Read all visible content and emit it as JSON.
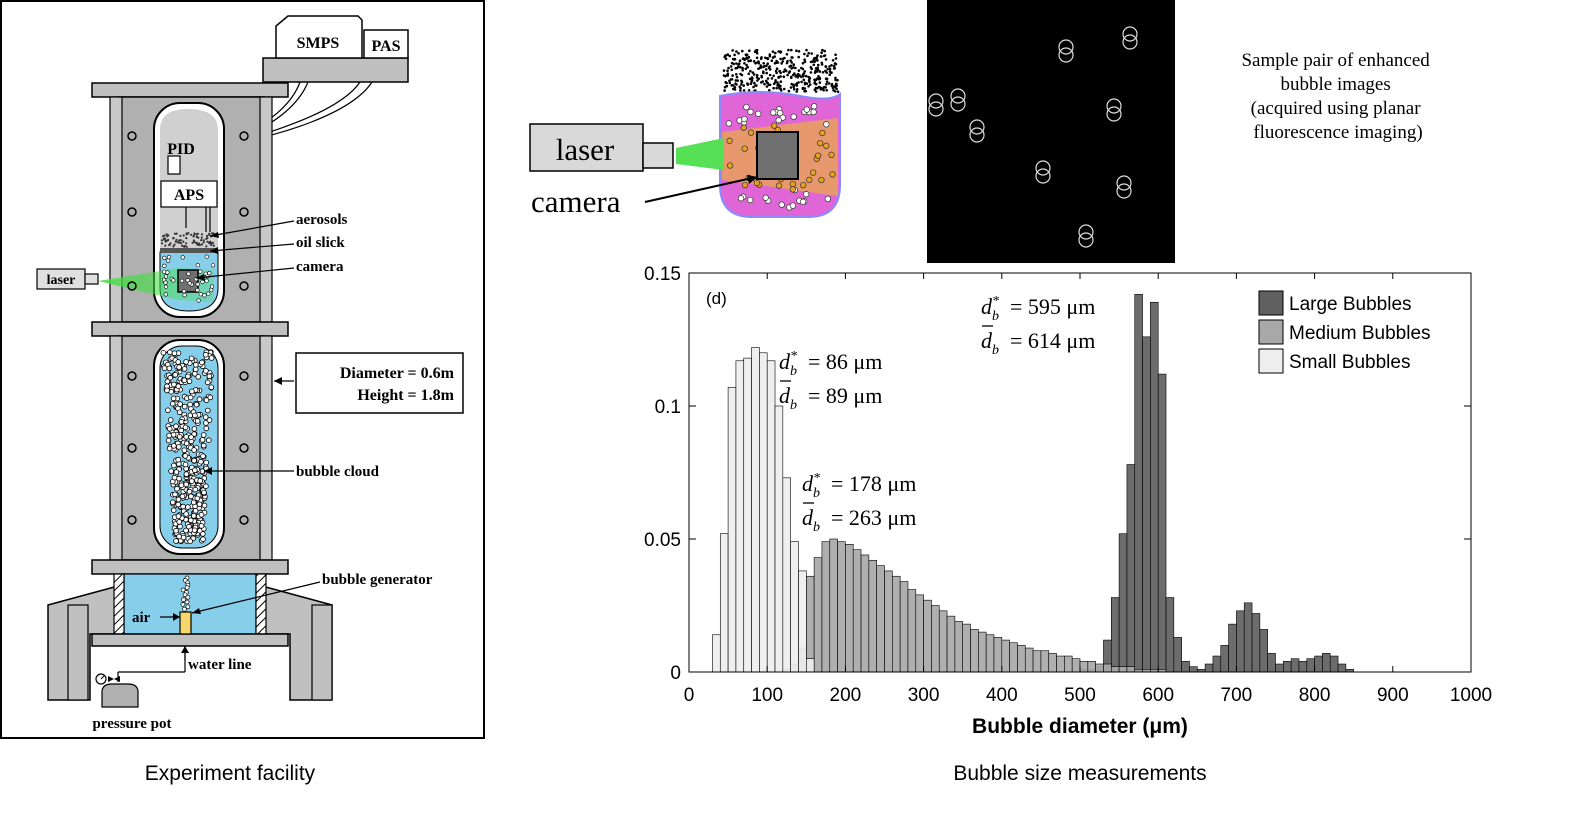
{
  "facility": {
    "caption": "Experiment facility",
    "labels": {
      "smps": "SMPS",
      "pas": "PAS",
      "pid": "PID",
      "aps": "APS",
      "aerosols": "aerosols",
      "oil_slick": "oil slick",
      "camera": "camera",
      "laser": "laser",
      "diameter": "Diameter = 0.6m",
      "height": "Height = 1.8m",
      "bubble_cloud": "bubble cloud",
      "bubble_generator": "bubble generator",
      "air": "air",
      "water_line": "water line",
      "pressure_pot": "pressure pot"
    },
    "colors": {
      "steel": "#c0c0c0",
      "water": "#87ceeb",
      "laser_beam": "#44dd44",
      "generator": "#f5d76e"
    }
  },
  "imaging": {
    "laser_label": "laser",
    "camera_label": "camera",
    "sample_caption_lines": [
      "Sample pair of enhanced",
      "bubble images",
      "(acquired using planar",
      "fluorescence imaging)"
    ],
    "colors": {
      "tank": "#e066d8",
      "fluorescence": "#e8a25a",
      "beam": "#55e055",
      "sample_bg": "#000000"
    }
  },
  "chart_caption": "Bubble size measurements",
  "chart_data": {
    "type": "bar",
    "panel_label": "(d)",
    "xlabel": "Bubble diameter (μm)",
    "xlim": [
      0,
      1000
    ],
    "ylim": [
      0,
      0.15
    ],
    "xticks": [
      0,
      100,
      200,
      300,
      400,
      500,
      600,
      700,
      800,
      900,
      1000
    ],
    "yticks": [
      0,
      0.05,
      0.1,
      0.15
    ],
    "ytick_labels": [
      "0",
      "0.05",
      "0.1",
      "0.15"
    ],
    "bin_width": 10,
    "legend_position": "top-right",
    "series": [
      {
        "name": "Large Bubbles",
        "color": "#606060",
        "bin_starts": [
          500,
          510,
          520,
          530,
          540,
          550,
          560,
          570,
          580,
          590,
          600,
          610,
          620,
          630,
          640,
          650,
          660,
          670,
          680,
          690,
          700,
          710,
          720,
          730,
          740,
          750,
          760,
          770,
          780,
          790,
          800,
          810,
          820,
          830,
          840
        ],
        "values": [
          0.001,
          0.001,
          0.002,
          0.012,
          0.028,
          0.052,
          0.078,
          0.142,
          0.126,
          0.139,
          0.112,
          0.028,
          0.013,
          0.004,
          0.002,
          0.001,
          0.003,
          0.006,
          0.01,
          0.018,
          0.023,
          0.026,
          0.022,
          0.016,
          0.007,
          0.003,
          0.004,
          0.005,
          0.004,
          0.005,
          0.006,
          0.007,
          0.006,
          0.003,
          0.001
        ]
      },
      {
        "name": "Medium Bubbles",
        "color": "#a8a8a8",
        "bin_starts": [
          120,
          130,
          140,
          150,
          160,
          170,
          180,
          190,
          200,
          210,
          220,
          230,
          240,
          250,
          260,
          270,
          280,
          290,
          300,
          310,
          320,
          330,
          340,
          350,
          360,
          370,
          380,
          390,
          400,
          410,
          420,
          430,
          440,
          450,
          460,
          470,
          480,
          490,
          500,
          510,
          520,
          530,
          540,
          550,
          560,
          570,
          580,
          590,
          600
        ],
        "values": [
          0.001,
          0.003,
          0.009,
          0.036,
          0.043,
          0.049,
          0.05,
          0.049,
          0.048,
          0.046,
          0.044,
          0.042,
          0.04,
          0.038,
          0.036,
          0.034,
          0.031,
          0.029,
          0.027,
          0.025,
          0.023,
          0.021,
          0.019,
          0.018,
          0.016,
          0.015,
          0.014,
          0.013,
          0.012,
          0.011,
          0.01,
          0.009,
          0.008,
          0.008,
          0.007,
          0.006,
          0.006,
          0.005,
          0.004,
          0.004,
          0.003,
          0.003,
          0.002,
          0.002,
          0.002,
          0.001,
          0.001,
          0.001,
          0.001
        ]
      },
      {
        "name": "Small Bubbles",
        "color": "#eeeeee",
        "bin_starts": [
          30,
          40,
          50,
          60,
          70,
          80,
          90,
          100,
          110,
          120,
          130,
          140,
          150
        ],
        "values": [
          0.014,
          0.052,
          0.107,
          0.117,
          0.118,
          0.122,
          0.12,
          0.117,
          0.1,
          0.073,
          0.049,
          0.038,
          0.005
        ]
      }
    ],
    "annotations": [
      {
        "line1": "= 86 μm",
        "line2": "= 89 μm"
      },
      {
        "line1": "= 178 μm",
        "line2": "= 263 μm"
      },
      {
        "line1": "= 595 μm",
        "line2": "= 614 μm"
      }
    ]
  }
}
